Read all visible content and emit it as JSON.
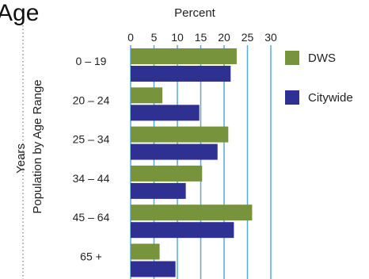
{
  "title_fragment": "Age",
  "chart_data": {
    "type": "bar",
    "orientation": "horizontal",
    "xlabel": "Percent",
    "ylabel_line1": "Years",
    "ylabel_line2": "Population by Age Range",
    "xlim": [
      0,
      30
    ],
    "xticks": [
      "0",
      "5",
      "10",
      "15",
      "20",
      "25",
      "30"
    ],
    "grid": true,
    "legend_position": "right",
    "categories": [
      "0 – 19",
      "20 – 24",
      "25 – 34",
      "34 – 44",
      "45 – 64",
      "65 +"
    ],
    "series": [
      {
        "name": "DWS",
        "color": "#77933c",
        "values": [
          22.7,
          6.8,
          20.9,
          15.3,
          26.0,
          6.2
        ]
      },
      {
        "name": "Citywide",
        "color": "#2e3192",
        "values": [
          21.4,
          14.7,
          18.6,
          11.8,
          22.1,
          9.6
        ]
      }
    ]
  }
}
